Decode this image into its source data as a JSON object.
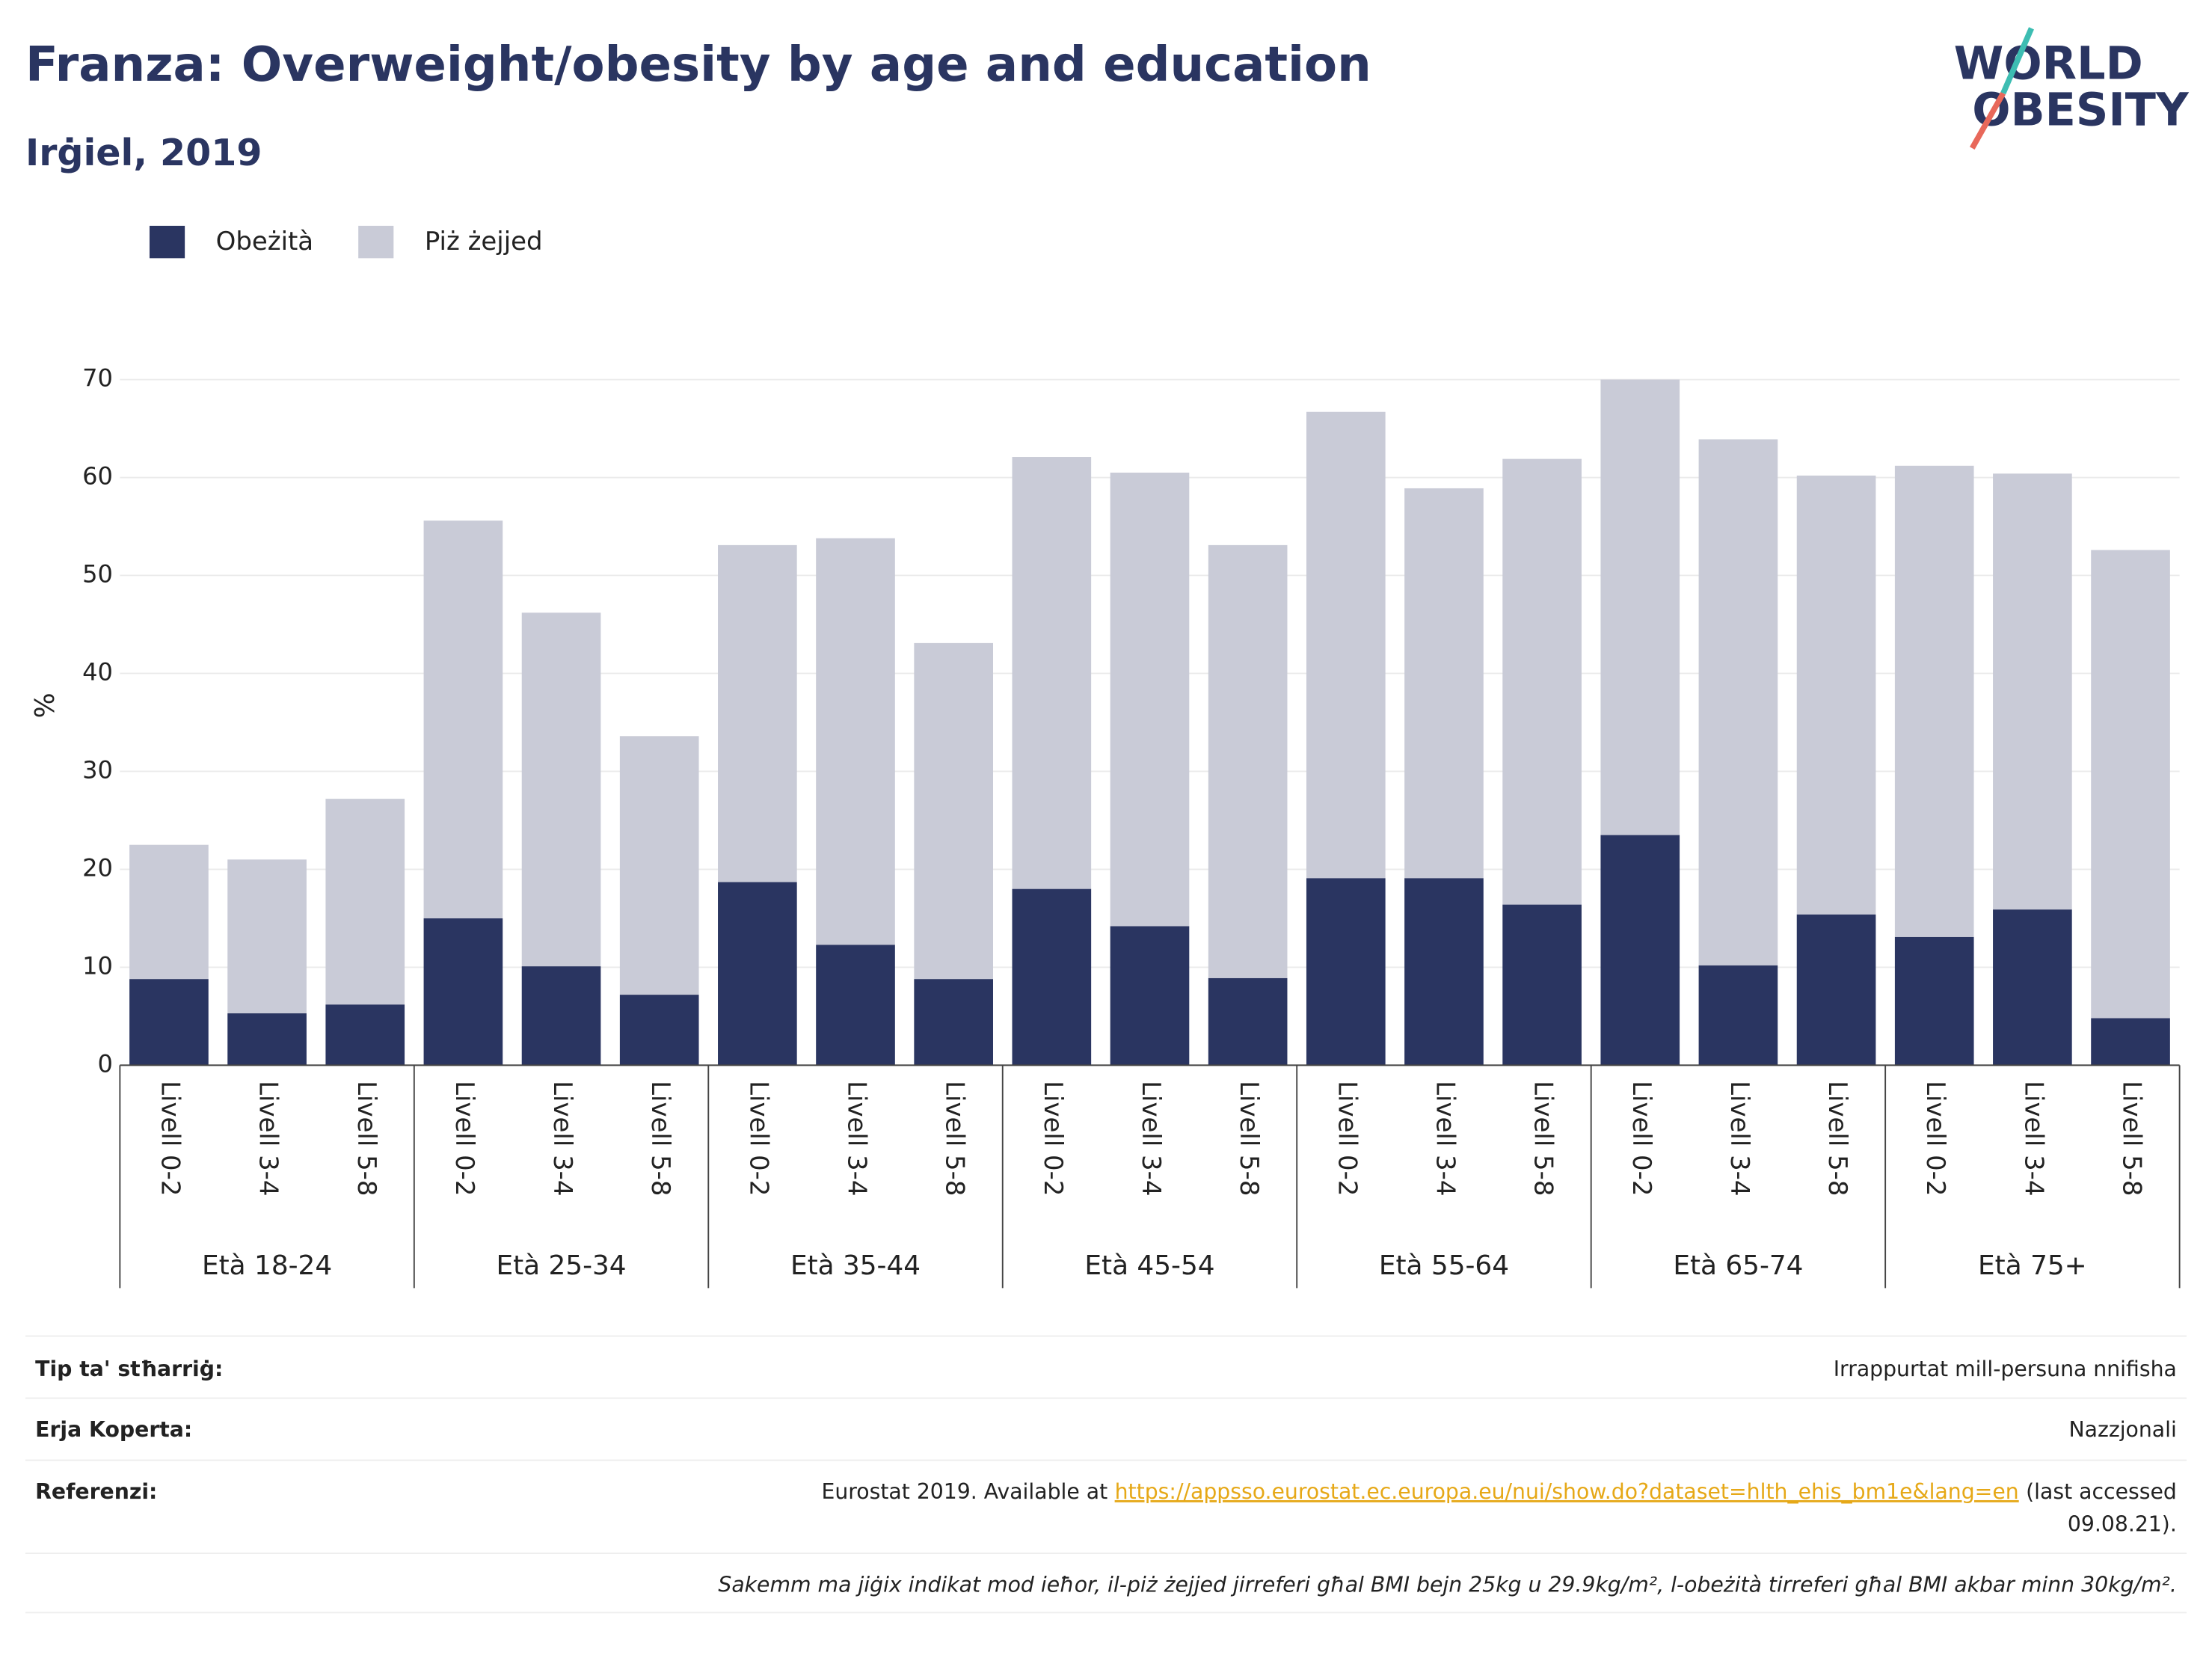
{
  "chart_data": {
    "type": "stacked_bar",
    "title": "Franza: Overweight/obesity by age and education",
    "subtitle": "Irġiel, 2019",
    "y_label": "%",
    "categories": [
      "Livell 0-2",
      "Livell 3-4",
      "Livell 5-8",
      "Livell 0-2",
      "Livell 3-4",
      "Livell 5-8",
      "Livell 0-2",
      "Livell 3-4",
      "Livell 5-8",
      "Livell 0-2",
      "Livell 3-4",
      "Livell 5-8",
      "Livell 0-2",
      "Livell 3-4",
      "Livell 5-8",
      "Livell 0-2",
      "Livell 3-4",
      "Livell 5-8",
      "Livell 0-2",
      "Livell 3-4",
      "Livell 5-8"
    ],
    "groups": [
      "Età 18-24",
      "Età 25-34",
      "Età 35-44",
      "Età 45-54",
      "Età 55-64",
      "Età 65-74",
      "Età 75+"
    ],
    "series": [
      {
        "name": "Obeżità",
        "color": "#2a3561",
        "values": [
          8.8,
          5.3,
          6.2,
          15,
          10.1,
          7.2,
          18.7,
          12.3,
          8.8,
          18,
          14.2,
          8.9,
          19.1,
          19.1,
          16.4,
          23.5,
          10.2,
          15.4,
          13.1,
          15.9,
          4.8
        ]
      },
      {
        "name": "Piż żejjed",
        "color": "#c9cbd7",
        "values": [
          13.7,
          15.7,
          21.0,
          40.6,
          36.1,
          26.4,
          34.4,
          41.5,
          34.3,
          44.1,
          46.3,
          44.2,
          47.6,
          39.8,
          45.5,
          46.5,
          53.7,
          44.8,
          48.1,
          44.5,
          47.8
        ]
      }
    ],
    "ylim": [
      0,
      70
    ],
    "yticks": [
      0,
      10,
      20,
      30,
      40,
      50,
      60,
      70
    ],
    "grid": true,
    "legend": "top-left"
  },
  "logo": [
    "WORLD",
    "OBESITY"
  ],
  "footer": {
    "rows": [
      {
        "label": "Tip ta' stħarriġ:",
        "value": "Irrappurtat mill-persuna nnifisha"
      },
      {
        "label": "Erja Koperta:",
        "value": "Nazzjonali"
      }
    ],
    "reference": {
      "label": "Referenzi:",
      "text": "Eurostat 2019. Available at",
      "url": "https://appsso.eurostat.ec.europa.eu/nui/show.do?dataset=hlth_ehis_bm1e&lang=en",
      "suffix": "(last accessed",
      "date": "09.08.21)."
    },
    "note": "Sakemm ma jiġix indikat mod ieħor, il-piż żejjed jirreferi għal BMI bejn 25kg u 29.9kg/m², l-obeżità tirreferi għal BMI akbar minn 30kg/m²."
  }
}
